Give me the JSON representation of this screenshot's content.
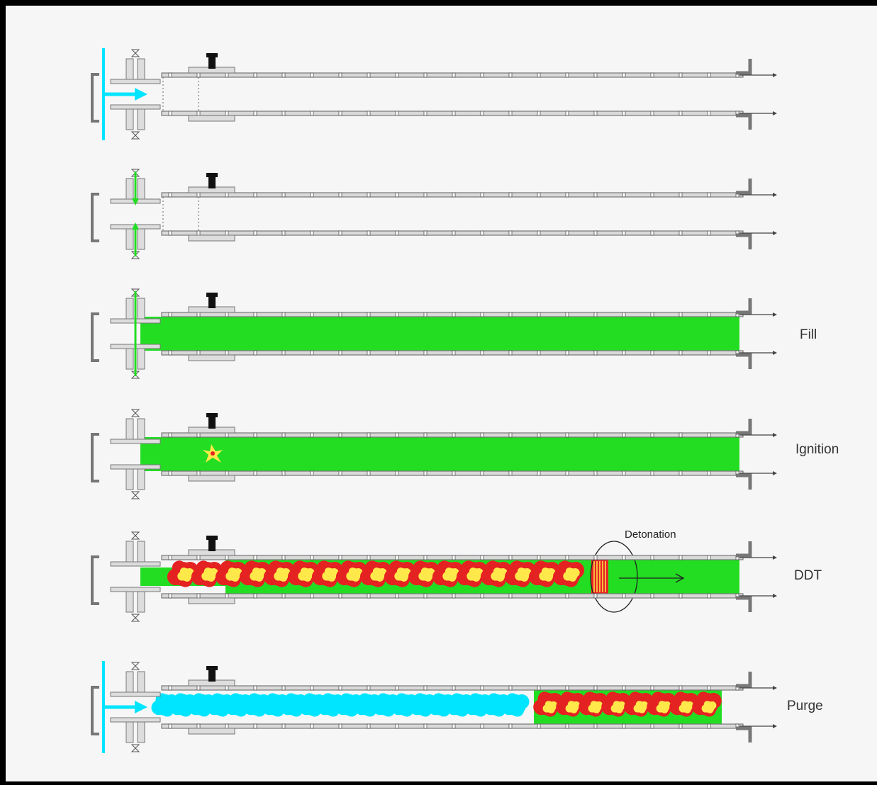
{
  "stages": [
    {
      "id": "stage-1",
      "label": ""
    },
    {
      "id": "stage-2",
      "label": ""
    },
    {
      "id": "stage-3",
      "label": "Fill"
    },
    {
      "id": "stage-4",
      "label": "Ignition"
    },
    {
      "id": "stage-5",
      "label": "DDT"
    },
    {
      "id": "stage-6",
      "label": "Purge"
    }
  ],
  "annotation": {
    "detonation": "Detonation"
  },
  "colors": {
    "frame": "#000000",
    "background": "#f6f6f6",
    "tube": "#777777",
    "air": "#00e5ff",
    "fuel_mixture": "#22dd22",
    "flame_outer": "#e52222",
    "flame_inner": "#ffe94a"
  }
}
